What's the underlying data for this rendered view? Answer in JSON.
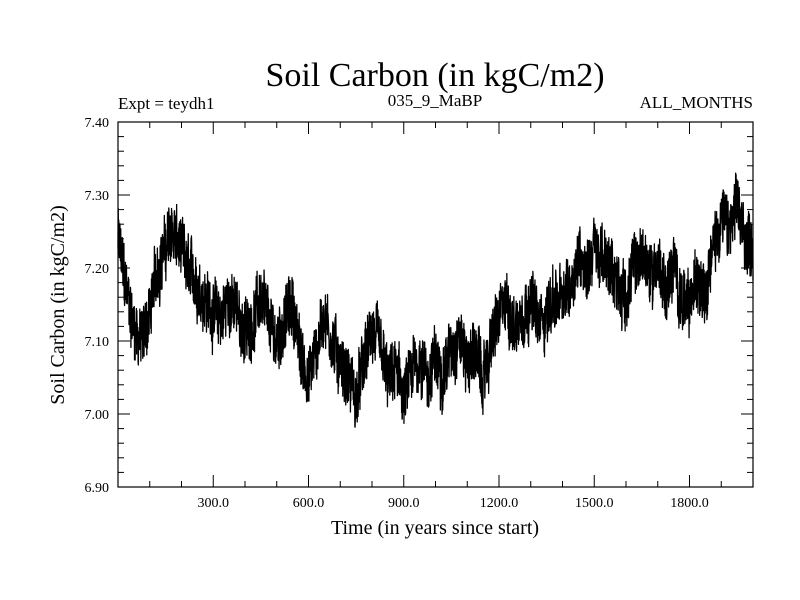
{
  "chart_data": {
    "type": "line",
    "title": "Soil Carbon (in kgC/m2)",
    "left_caption": "Expt = teydh1",
    "center_caption": "035_9_MaBP",
    "right_caption": "ALL_MONTHS",
    "xlabel": "Time (in years since start)",
    "ylabel": "Soil Carbon (in kgC/m2)",
    "xlim": [
      0,
      2000
    ],
    "ylim": [
      6.9,
      7.4
    ],
    "x_ticks": [
      300,
      600,
      900,
      1200,
      1500,
      1800
    ],
    "x_tick_labels": [
      "300.0",
      "600.0",
      "900.0",
      "1200.0",
      "1500.0",
      "1800.0"
    ],
    "y_ticks": [
      6.9,
      7.0,
      7.1,
      7.2,
      7.3,
      7.4
    ],
    "y_tick_labels": [
      "6.90",
      "7.00",
      "7.10",
      "7.20",
      "7.30",
      "7.40"
    ],
    "grid": false,
    "line_color": "#000000",
    "series": [
      {
        "name": "Soil Carbon",
        "x": [
          0,
          25,
          50,
          75,
          100,
          125,
          150,
          175,
          200,
          225,
          250,
          275,
          300,
          325,
          350,
          375,
          400,
          425,
          450,
          475,
          500,
          525,
          550,
          575,
          600,
          625,
          650,
          675,
          700,
          725,
          750,
          775,
          800,
          825,
          850,
          875,
          900,
          925,
          950,
          975,
          1000,
          1025,
          1050,
          1075,
          1100,
          1125,
          1150,
          1175,
          1200,
          1225,
          1250,
          1275,
          1300,
          1325,
          1350,
          1375,
          1400,
          1425,
          1450,
          1475,
          1500,
          1525,
          1550,
          1575,
          1600,
          1625,
          1650,
          1675,
          1700,
          1725,
          1750,
          1775,
          1800,
          1825,
          1850,
          1875,
          1900,
          1925,
          1950,
          1975,
          2000
        ],
        "values": [
          7.24,
          7.17,
          7.12,
          7.1,
          7.14,
          7.2,
          7.23,
          7.25,
          7.22,
          7.19,
          7.18,
          7.16,
          7.14,
          7.13,
          7.16,
          7.14,
          7.11,
          7.13,
          7.16,
          7.12,
          7.1,
          7.13,
          7.15,
          7.08,
          7.05,
          7.09,
          7.14,
          7.1,
          7.07,
          7.05,
          7.02,
          7.07,
          7.11,
          7.09,
          7.04,
          7.06,
          7.02,
          7.05,
          7.08,
          7.05,
          7.07,
          7.06,
          7.09,
          7.11,
          7.07,
          7.09,
          7.04,
          7.1,
          7.13,
          7.15,
          7.12,
          7.14,
          7.16,
          7.12,
          7.14,
          7.16,
          7.15,
          7.18,
          7.22,
          7.2,
          7.23,
          7.21,
          7.2,
          7.18,
          7.16,
          7.2,
          7.22,
          7.19,
          7.21,
          7.17,
          7.2,
          7.16,
          7.14,
          7.19,
          7.18,
          7.23,
          7.27,
          7.25,
          7.28,
          7.24,
          7.23
        ],
        "noise_amplitude": 0.04
      }
    ]
  }
}
